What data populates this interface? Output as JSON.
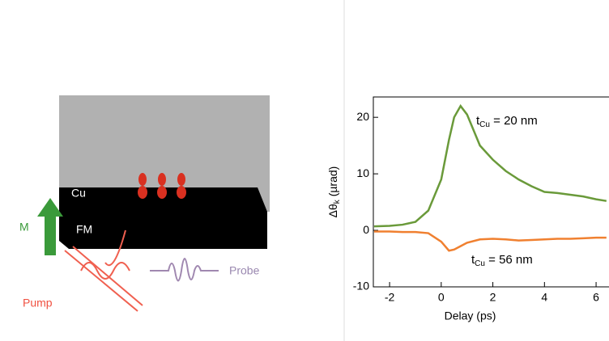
{
  "diagram": {
    "layer_top": "Cu",
    "layer_bottom": "FM",
    "magnetization": "M",
    "pump": "Pump",
    "probe": "Probe"
  },
  "chart_data": {
    "type": "line",
    "x": [
      -2.6,
      -2,
      -1.5,
      -1,
      -0.5,
      0,
      0.3,
      0.5,
      0.75,
      1,
      1.5,
      2,
      2.5,
      3,
      3.5,
      4,
      4.5,
      5,
      5.5,
      6,
      6.4
    ],
    "series": [
      {
        "name": "tCu = 20 nm",
        "color": "#6a9a3a",
        "values": [
          0.7,
          0.8,
          1,
          1.5,
          3.5,
          9,
          16,
          20,
          22,
          20.5,
          15,
          12.5,
          10.5,
          9,
          7.8,
          6.8,
          6.6,
          6.3,
          6,
          5.5,
          5.2
        ]
      },
      {
        "name": "tCu = 56 nm",
        "color": "#f08030",
        "values": [
          -0.2,
          -0.2,
          -0.3,
          -0.3,
          -0.5,
          -2,
          -3.6,
          -3.4,
          -2.8,
          -2.2,
          -1.6,
          -1.5,
          -1.6,
          -1.8,
          -1.7,
          -1.6,
          -1.5,
          -1.5,
          -1.4,
          -1.3,
          -1.3
        ]
      }
    ],
    "annotations": [
      {
        "main": "t",
        "sub": "Cu",
        "rest": " = 20 nm"
      },
      {
        "main": "t",
        "sub": "Cu",
        "rest": " = 56 nm"
      }
    ],
    "xlabel": "Delay (ps)",
    "ylabel": {
      "main": "Δθ",
      "sub": "k",
      "rest": " (µrad)"
    },
    "xlim": [
      -2.63,
      6.5
    ],
    "ylim": [
      -10,
      23.6
    ],
    "xticks": [
      -2,
      0,
      2,
      4,
      6
    ],
    "yticks": [
      -10,
      0,
      10,
      20
    ]
  }
}
